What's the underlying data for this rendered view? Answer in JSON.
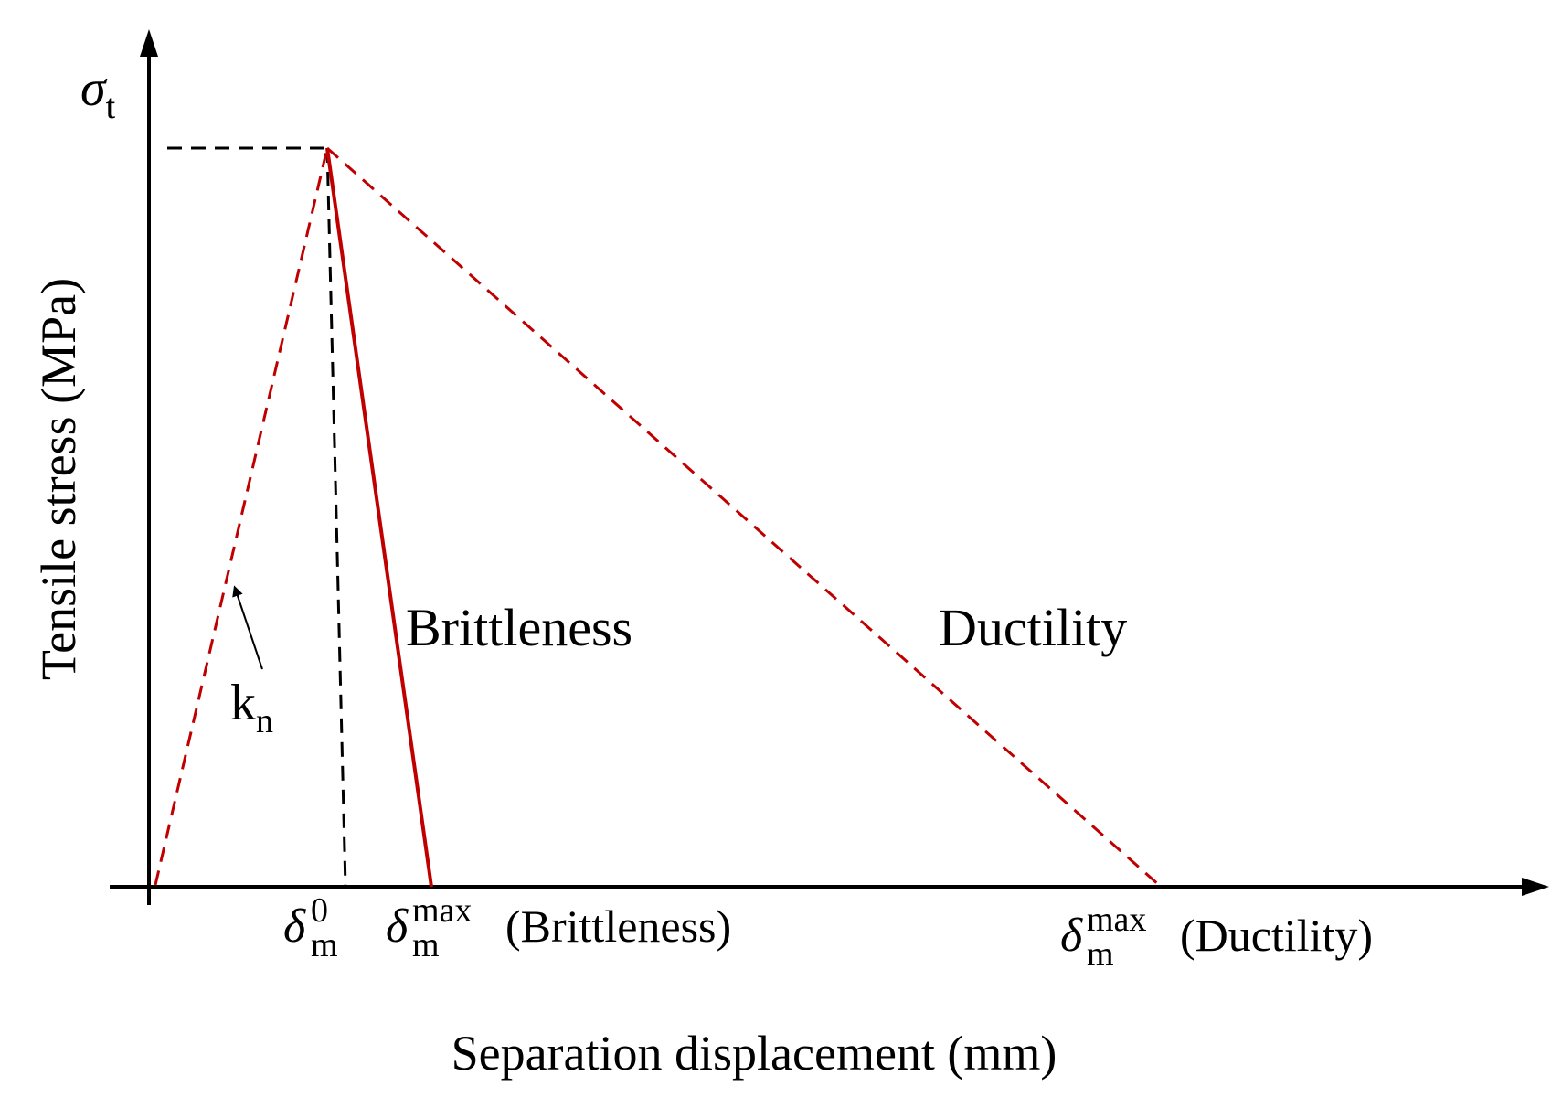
{
  "axes": {
    "y_symbol": "σ",
    "y_symbol_sub": "t",
    "y_label": "Tensile stress (MPa)",
    "x_label": "Separation displacement (mm)"
  },
  "curves": {
    "brittleness_label": "Brittleness",
    "ductility_label": "Ductility",
    "stiffness_symbol": "k",
    "stiffness_sub": "n"
  },
  "ticks": {
    "delta_symbol": "δ",
    "delta_sub": "m",
    "delta0_sup": "0",
    "max_sup": "max",
    "brittle_suffix": "(Brittleness)",
    "ductile_suffix": "(Ductility)"
  },
  "colors": {
    "curve": "#c00000",
    "axis": "#000000",
    "guide": "#000000"
  }
}
